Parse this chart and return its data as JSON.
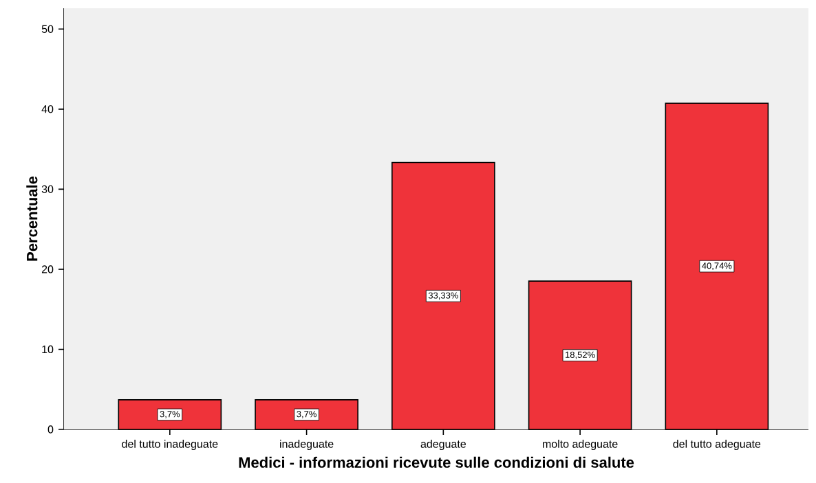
{
  "chart_data": {
    "type": "bar",
    "xlabel": "Medici - informazioni ricevute sulle condizioni di salute",
    "ylabel": "Percentuale",
    "categories": [
      "del tutto inadeguate",
      "inadeguate",
      "adeguate",
      "molto adeguate",
      "del tutto adeguate"
    ],
    "values": [
      3.7,
      3.7,
      33.33,
      18.52,
      40.74
    ],
    "value_labels": [
      "3,7%",
      "3,7%",
      "33,33%",
      "18,52%",
      "40,74%"
    ],
    "color": "#ef333a",
    "ylim": [
      0,
      52.6
    ],
    "yticks": [
      0,
      10,
      20,
      30,
      40,
      50
    ]
  }
}
